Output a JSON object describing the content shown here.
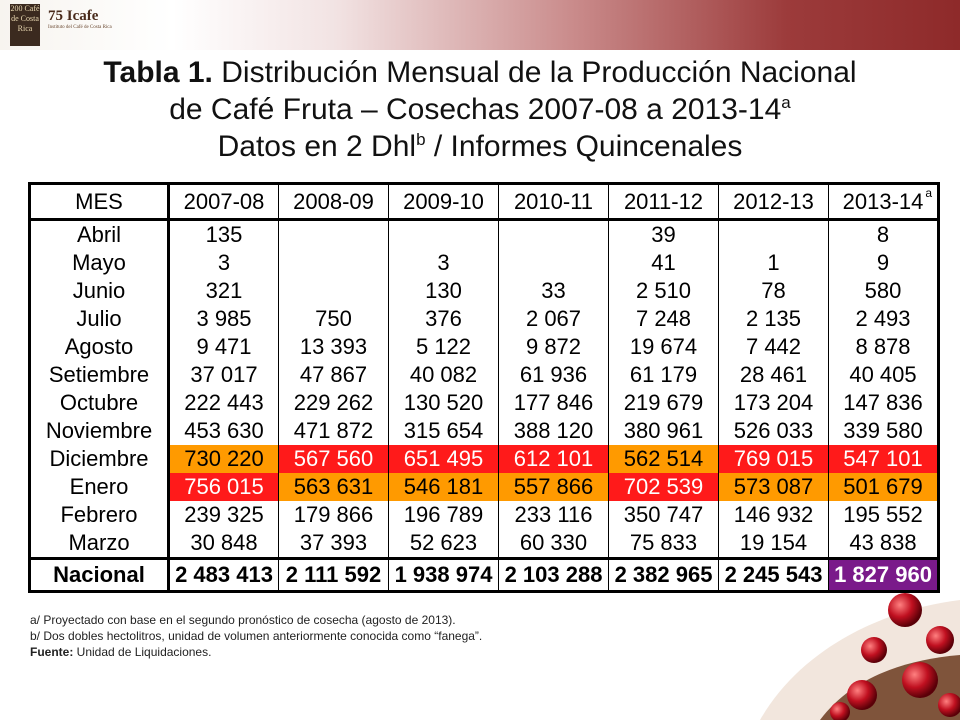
{
  "header": {
    "badge_text": "200 Café de Costa Rica",
    "logo_name": "75 Icafe",
    "logo_subtitle": "Instituto del Café de Costa Rica"
  },
  "title": {
    "prefix": "Tabla 1.",
    "line1": "Distribución Mensual de la Producción Nacional",
    "line2": "de Café Fruta – Cosechas 2007-08 a 2013-14",
    "line2_sup": "a",
    "line3a": "Datos en 2 Dhl",
    "line3_sup": "b",
    "line3b": " / Informes Quincenales"
  },
  "table": {
    "headers": [
      "MES",
      "2007-08",
      "2008-09",
      "2009-10",
      "2010-11",
      "2011-12",
      "2012-13",
      "2013-14"
    ],
    "last_header_sup": "a",
    "rows": [
      [
        "Abril",
        "135",
        "",
        "",
        "",
        "39",
        "",
        "8"
      ],
      [
        "Mayo",
        "3",
        "",
        "3",
        "",
        "41",
        "1",
        "9"
      ],
      [
        "Junio",
        "321",
        "",
        "130",
        "33",
        "2 510",
        "78",
        "580"
      ],
      [
        "Julio",
        "3 985",
        "750",
        "376",
        "2 067",
        "7 248",
        "2 135",
        "2 493"
      ],
      [
        "Agosto",
        "9 471",
        "13 393",
        "5 122",
        "9 872",
        "19 674",
        "7 442",
        "8 878"
      ],
      [
        "Setiembre",
        "37 017",
        "47 867",
        "40 082",
        "61 936",
        "61 179",
        "28 461",
        "40 405"
      ],
      [
        "Octubre",
        "222 443",
        "229 262",
        "130 520",
        "177 846",
        "219 679",
        "173 204",
        "147 836"
      ],
      [
        "Noviembre",
        "453 630",
        "471 872",
        "315 654",
        "388 120",
        "380 961",
        "526 033",
        "339 580"
      ],
      [
        "Diciembre",
        "730 220",
        "567 560",
        "651 495",
        "612 101",
        "562 514",
        "769 015",
        "547 101"
      ],
      [
        "Enero",
        "756 015",
        "563 631",
        "546 181",
        "557 866",
        "702 539",
        "573 087",
        "501 679"
      ],
      [
        "Febrero",
        "239 325",
        "179 866",
        "196 789",
        "233 116",
        "350 747",
        "146 932",
        "195 552"
      ],
      [
        "Marzo",
        "30 848",
        "37 393",
        "52 623",
        "60 330",
        "75 833",
        "19 154",
        "43 838"
      ]
    ],
    "total": [
      "Nacional",
      "2 483 413",
      "2 111 592",
      "1 938 974",
      "2 103 288",
      "2 382 965",
      "2 245 543",
      "1 827 960"
    ],
    "highlight_colors": {
      "red": "#ff1a1a",
      "orange": "#ff9a00",
      "purple": "#7a1a8a"
    }
  },
  "notes": {
    "a": "a/ Proyectado con base en el segundo pronóstico de cosecha (agosto de 2013).",
    "b": "b/ Dos dobles hectolitros, unidad de volumen anteriormente conocida como “fanega”.",
    "source_label": "Fuente:",
    "source_text": " Unidad de Liquidaciones."
  }
}
